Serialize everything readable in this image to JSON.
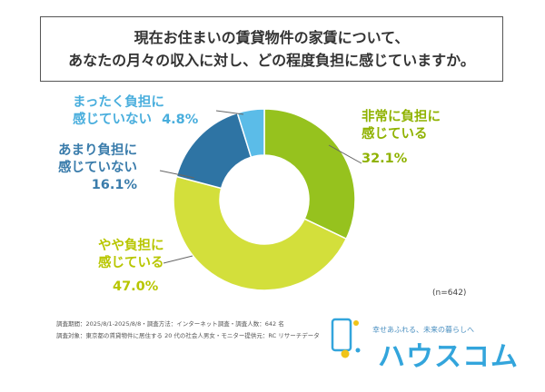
{
  "title": {
    "line1": "現在お住まいの賃貸物件の家賃について、",
    "line2": "あなたの月々の収入に対し、どの程度負担に感じていますか。"
  },
  "chart_data": {
    "type": "pie",
    "donut": true,
    "slices": [
      {
        "label_line1": "非常に負担に",
        "label_line2": "感じている",
        "value": 32.1,
        "value_text": "32.1%",
        "color": "#96c21e"
      },
      {
        "label_line1": "やや負担に",
        "label_line2": "感じている",
        "value": 47.0,
        "value_text": "47.0%",
        "color": "#d3df3b"
      },
      {
        "label_line1": "あまり負担に",
        "label_line2": "感じていない",
        "value": 16.1,
        "value_text": "16.1%",
        "color": "#2e74a4"
      },
      {
        "label_line1": "まったく負担に",
        "label_line2": "感じていない",
        "value": 4.8,
        "value_text": "4.8%",
        "color": "#5bbce8"
      }
    ],
    "n_label": "(n=642)"
  },
  "footer": {
    "line1": "調査期間：2025/8/1-2025/8/8・調査方法：インターネット調査・調査人数：642 名",
    "line2": "調査対象：東京都の賃貸物件に居住する 20 代の社会人男女・モニター提供元：RC リサーチデータ"
  },
  "logo": {
    "tagline": "幸せあふれる、未来の暮らしへ",
    "name": "ハウスコム",
    "color": "#33a5dc"
  }
}
